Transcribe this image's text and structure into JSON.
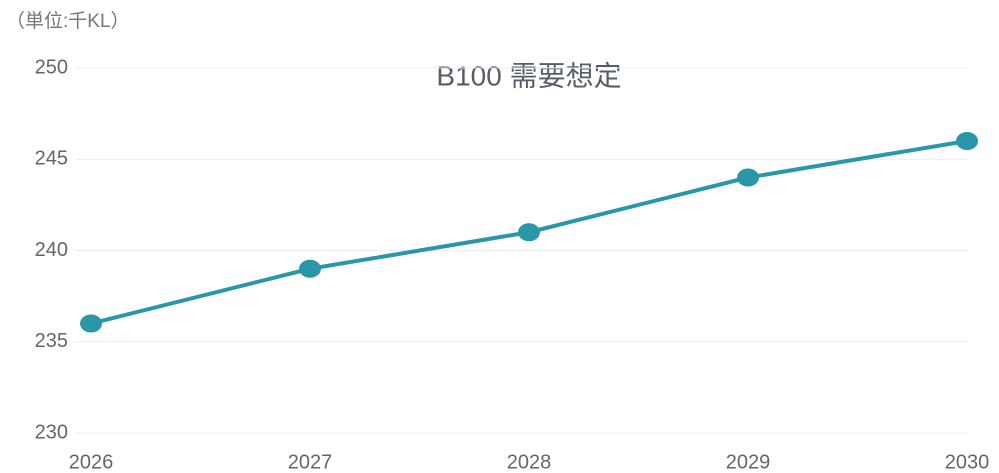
{
  "chart_data": {
    "type": "line",
    "title": "B100 需要想定",
    "unit_label": "（単位:千KL）",
    "categories": [
      "2026",
      "2027",
      "2028",
      "2029",
      "2030"
    ],
    "series": [
      {
        "name": "B100",
        "color": "#2a97a8",
        "values": [
          236,
          239,
          241,
          244,
          246
        ]
      }
    ],
    "ylim": [
      230,
      250
    ],
    "yticks": [
      230,
      235,
      240,
      245,
      250
    ],
    "grid": true
  }
}
